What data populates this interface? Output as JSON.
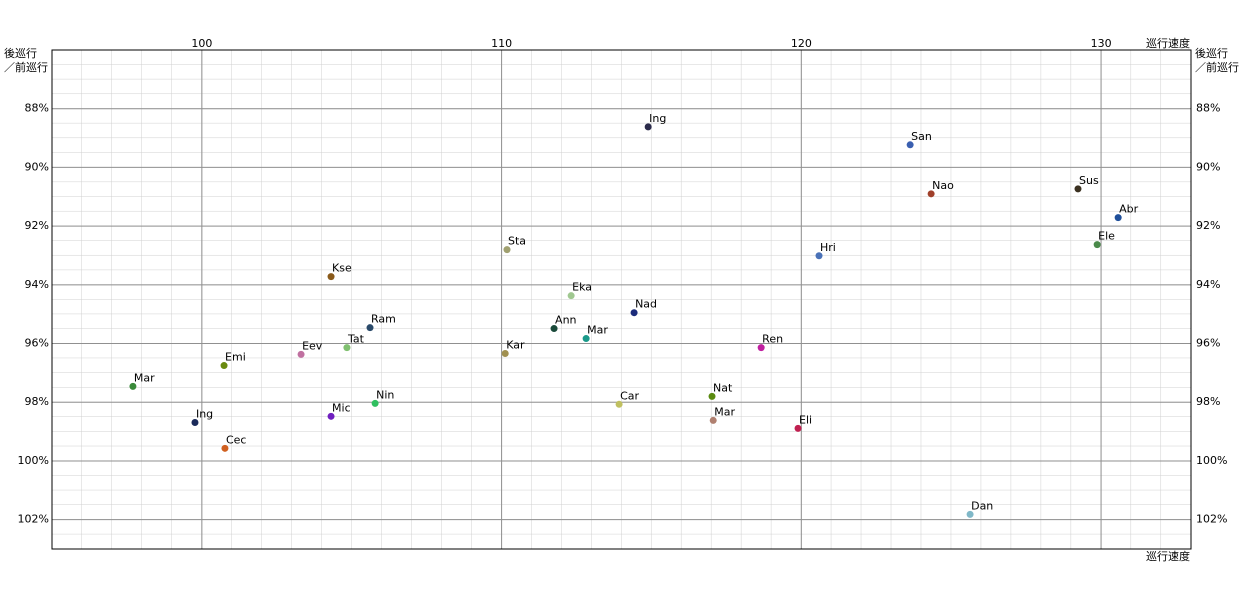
{
  "chart_data": {
    "type": "scatter",
    "xlabel": "巡行速度",
    "ylabel": [
      "後巡行",
      "／前巡行"
    ],
    "xlim": [
      95,
      133
    ],
    "xticks": [
      100,
      110,
      120,
      130
    ],
    "ylim": [
      86,
      103
    ],
    "y_inverted": true,
    "yticks": [
      {
        "value": 88,
        "label": "88%"
      },
      {
        "value": 90,
        "label": "90%"
      },
      {
        "value": 92,
        "label": "92%"
      },
      {
        "value": 94,
        "label": "94%"
      },
      {
        "value": 96,
        "label": "96%"
      },
      {
        "value": 98,
        "label": "98%"
      },
      {
        "value": 100,
        "label": "100%"
      },
      {
        "value": 102,
        "label": "102%"
      }
    ],
    "grid": true,
    "labels": [
      "Ing",
      "San",
      "Nao",
      "Sus",
      "Abr",
      "Ele",
      "Hri",
      "Sta",
      "Kse",
      "Eka",
      "Nad",
      "Ram",
      "Ann",
      "Mar",
      "Tat",
      "Eev",
      "Kar",
      "Ren",
      "Emi",
      "Mar",
      "Nat",
      "Nin",
      "Car",
      "Mic",
      "Mar",
      "Ing",
      "Eli",
      "Cec",
      "Dan"
    ],
    "x": [
      114.89,
      123.63,
      124.33,
      129.23,
      130.57,
      129.87,
      120.59,
      110.18,
      104.31,
      112.32,
      114.42,
      105.61,
      111.75,
      112.82,
      104.84,
      103.31,
      110.12,
      118.66,
      100.74,
      97.7,
      117.02,
      105.78,
      113.92,
      104.31,
      117.06,
      99.77,
      119.89,
      100.77,
      125.63
    ],
    "values": [
      88.62,
      89.23,
      90.9,
      90.73,
      91.71,
      92.63,
      93.01,
      92.8,
      93.72,
      94.37,
      94.95,
      95.46,
      95.49,
      95.83,
      96.14,
      96.37,
      96.34,
      96.14,
      96.75,
      97.46,
      97.8,
      98.04,
      98.07,
      98.48,
      98.62,
      98.69,
      98.89,
      99.57,
      101.82
    ],
    "colors": [
      "#2a2a4a",
      "#3a5fb0",
      "#a0402a",
      "#3a3020",
      "#1f4f9a",
      "#4a8a4a",
      "#4a72b8",
      "#a0a070",
      "#8a5a1a",
      "#a0c890",
      "#1a2a7a",
      "#2a4a6a",
      "#1a4a3a",
      "#1a9a8a",
      "#80c070",
      "#c070a0",
      "#a09050",
      "#c020a0",
      "#6a8a10",
      "#3a8a3a",
      "#5a8a10",
      "#30c060",
      "#c0c060",
      "#7020c0",
      "#b08070",
      "#1a2a5a",
      "#c02050",
      "#d06020",
      "#80b8c8"
    ]
  }
}
